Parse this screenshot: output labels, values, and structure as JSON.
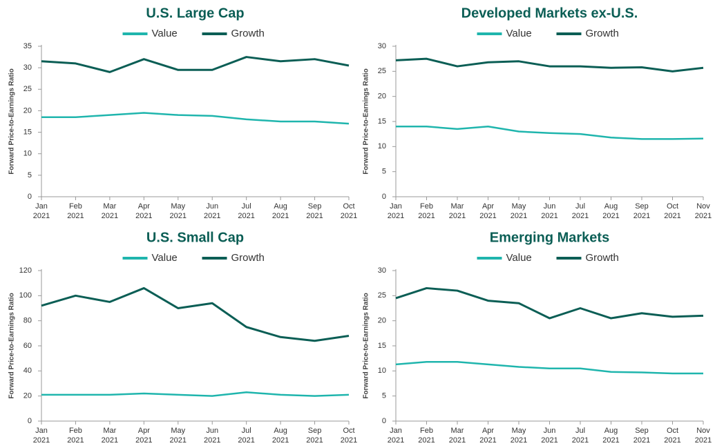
{
  "chart_data": [
    {
      "type": "line",
      "title": "U.S. Large Cap",
      "y_label": "Forward Price-to-Earnings Ratio",
      "x": [
        "Jan 2021",
        "Feb 2021",
        "Mar 2021",
        "Apr 2021",
        "May 2021",
        "Jun 2021",
        "Jul 2021",
        "Aug 2021",
        "Sep 2021",
        "Oct 2021"
      ],
      "series": [
        {
          "name": "Value",
          "color": "#1fb5ad",
          "values": [
            18.5,
            18.5,
            19,
            19.5,
            19,
            18.8,
            18,
            17.5,
            17.5,
            17
          ]
        },
        {
          "name": "Growth",
          "color": "#0b5e55",
          "values": [
            31.5,
            31,
            29,
            32,
            29.5,
            29.5,
            32.5,
            31.5,
            32,
            30.5
          ]
        }
      ],
      "ylim": [
        0,
        35
      ],
      "yticks": [
        0,
        5,
        10,
        15,
        20,
        25,
        30,
        35
      ]
    },
    {
      "type": "line",
      "title": "Developed Markets ex-U.S.",
      "y_label": "Forward Price-to-Earnings Ratio",
      "x": [
        "Jan 2021",
        "Feb 2021",
        "Mar 2021",
        "Apr 2021",
        "May 2021",
        "Jun 2021",
        "Jul 2021",
        "Aug 2021",
        "Sep 2021",
        "Oct 2021",
        "Nov 2021"
      ],
      "series": [
        {
          "name": "Value",
          "color": "#1fb5ad",
          "values": [
            14,
            14,
            13.5,
            14,
            13,
            12.7,
            12.5,
            11.8,
            11.5,
            11.5,
            11.6
          ]
        },
        {
          "name": "Growth",
          "color": "#0b5e55",
          "values": [
            27.2,
            27.5,
            26,
            26.8,
            27,
            26,
            26,
            25.7,
            25.8,
            25,
            25.7
          ]
        }
      ],
      "ylim": [
        0,
        30
      ],
      "yticks": [
        0,
        5,
        10,
        15,
        20,
        25,
        30
      ]
    },
    {
      "type": "line",
      "title": "U.S. Small Cap",
      "y_label": "Forward Price-to-Earnings Ratio",
      "x": [
        "Jan 2021",
        "Feb 2021",
        "Mar 2021",
        "Apr 2021",
        "May 2021",
        "Jun 2021",
        "Jul 2021",
        "Aug 2021",
        "Sep 2021",
        "Oct 2021"
      ],
      "series": [
        {
          "name": "Value",
          "color": "#1fb5ad",
          "values": [
            21,
            21,
            21,
            22,
            21,
            20,
            23,
            21,
            20,
            21
          ]
        },
        {
          "name": "Growth",
          "color": "#0b5e55",
          "values": [
            92,
            100,
            95,
            106,
            90,
            94,
            75,
            67,
            64,
            68
          ]
        }
      ],
      "ylim": [
        0,
        120
      ],
      "yticks": [
        0,
        20,
        40,
        60,
        80,
        100,
        120
      ]
    },
    {
      "type": "line",
      "title": "Emerging Markets",
      "y_label": "Forward Price-to-Earnings Ratio",
      "x": [
        "Jan 2021",
        "Feb 2021",
        "Mar 2021",
        "Apr 2021",
        "May 2021",
        "Jun 2021",
        "Jul 2021",
        "Aug 2021",
        "Sep 2021",
        "Oct 2021",
        "Nov 2021"
      ],
      "series": [
        {
          "name": "Value",
          "color": "#1fb5ad",
          "values": [
            11.3,
            11.8,
            11.8,
            11.3,
            10.8,
            10.5,
            10.5,
            9.8,
            9.7,
            9.5,
            9.5
          ]
        },
        {
          "name": "Growth",
          "color": "#0b5e55",
          "values": [
            24.5,
            26.5,
            26,
            24,
            23.5,
            20.5,
            22.5,
            20.5,
            21.5,
            20.8,
            21
          ]
        }
      ],
      "ylim": [
        0,
        30
      ],
      "yticks": [
        0,
        5,
        10,
        15,
        20,
        25,
        30
      ]
    }
  ]
}
